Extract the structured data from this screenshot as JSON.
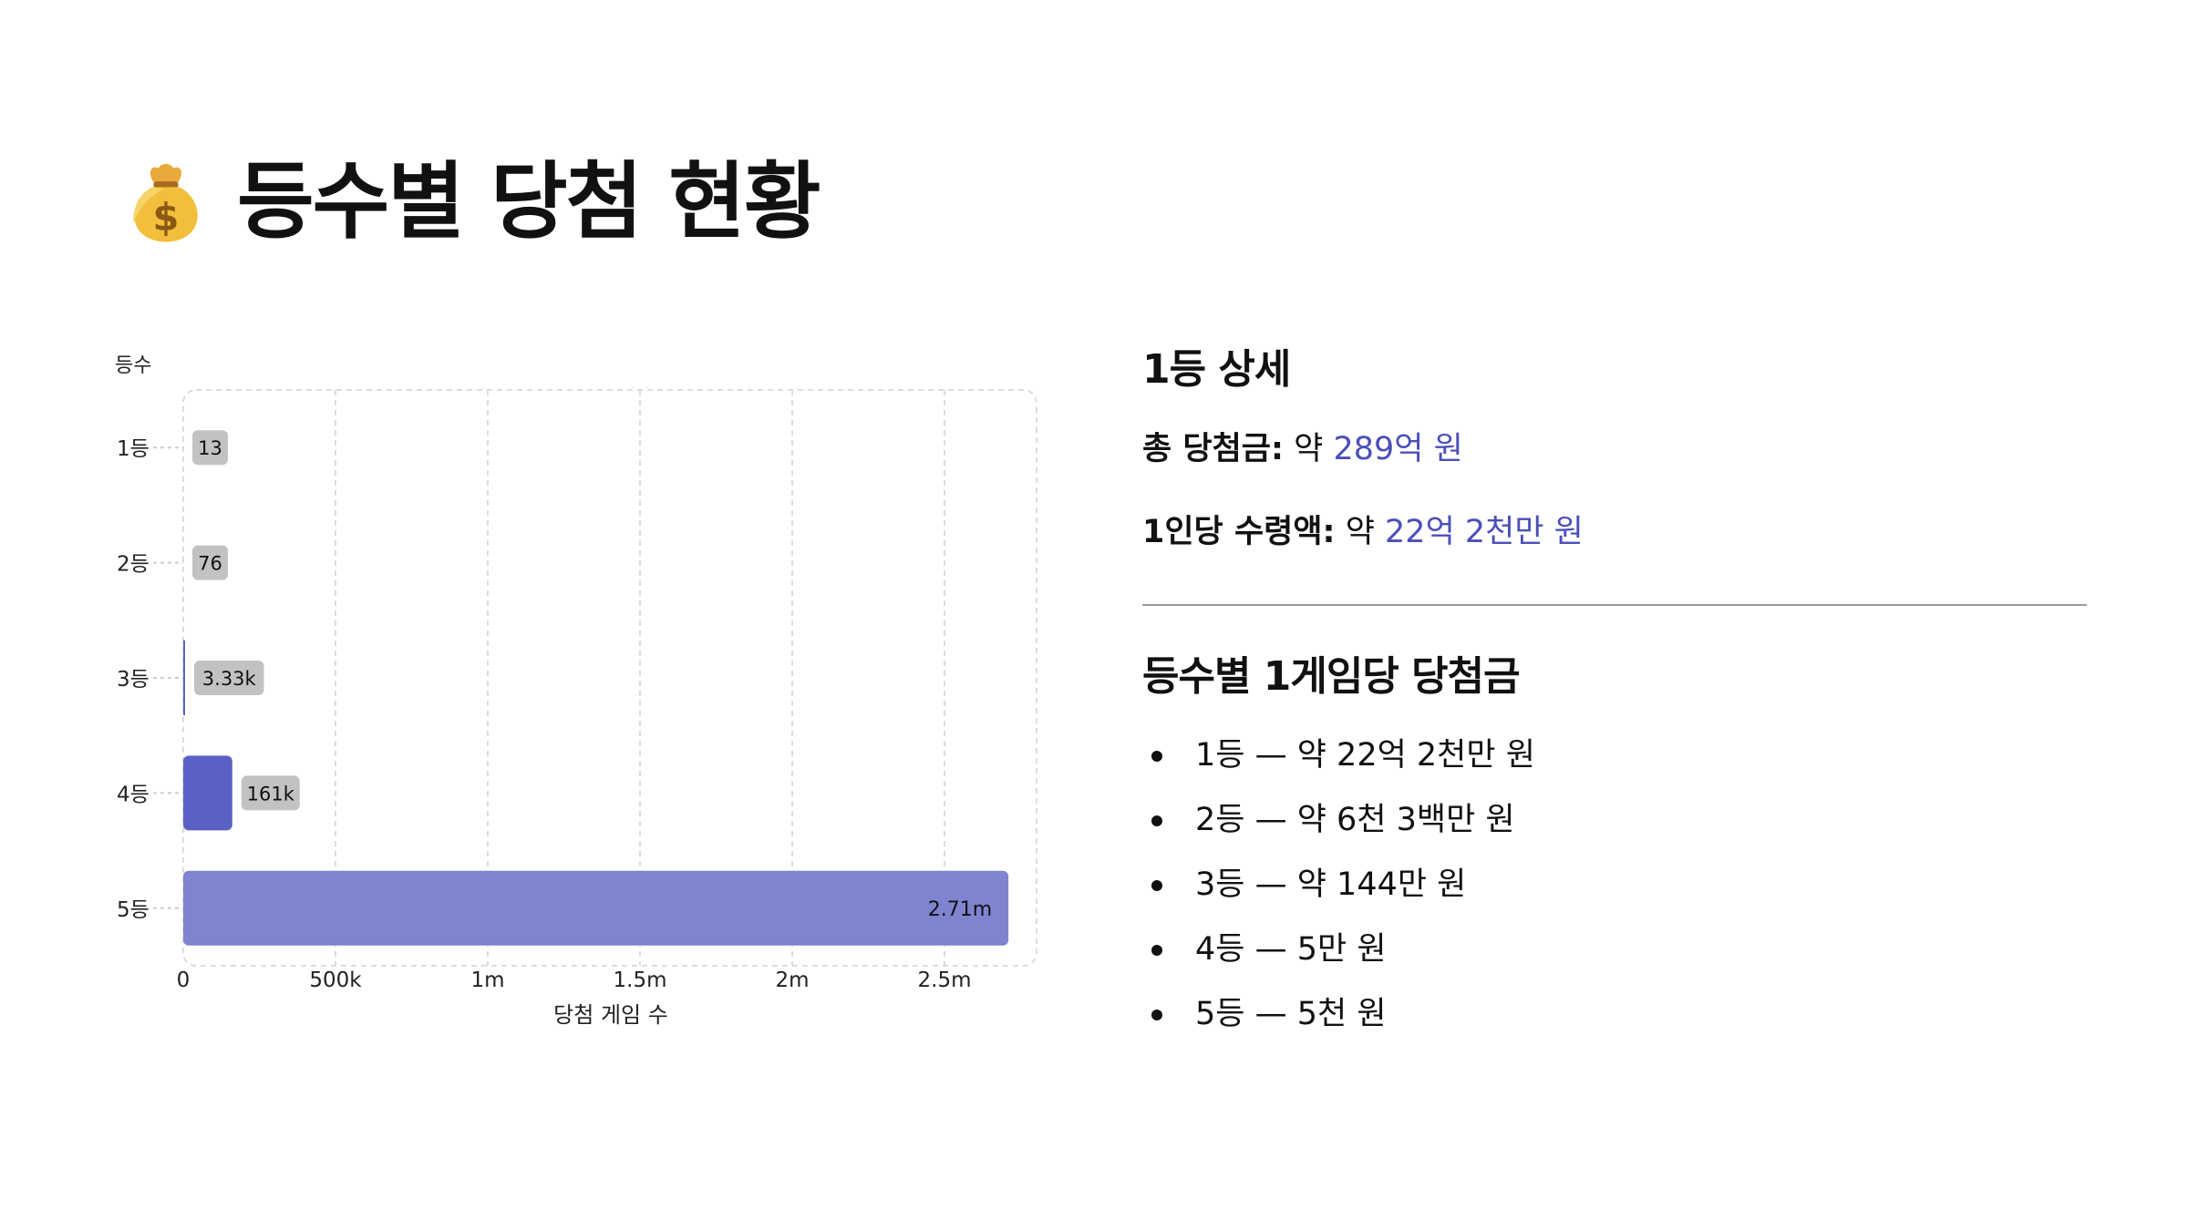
{
  "title": {
    "icon": "money-bag-icon",
    "text": "등수별 당첨 현황"
  },
  "chart_data": {
    "type": "bar",
    "orientation": "horizontal",
    "categories": [
      "1등",
      "2등",
      "3등",
      "4등",
      "5등"
    ],
    "values": [
      13,
      76,
      3330,
      161000,
      2710000
    ],
    "data_labels": [
      "13",
      "76",
      "3.33k",
      "161k",
      "2.71m"
    ],
    "ylabel": "등수",
    "xlabel": "당첨 게임 수",
    "xlim": [
      0,
      2800000
    ],
    "xticks": [
      0,
      500000,
      1000000,
      1500000,
      2000000,
      2500000
    ],
    "xtick_labels": [
      "0",
      "500k",
      "1m",
      "1.5m",
      "2m",
      "2.5m"
    ],
    "grid": true,
    "bar_colors": [
      "#5b60c7",
      "#5b60c7",
      "#5b60c7",
      "#5b60c7",
      "#7f84d0"
    ]
  },
  "detail": {
    "heading": "1등 상세",
    "total_label": "총 당첨금:",
    "total_prefix": "약",
    "total_value": "289억 원",
    "per_label": "1인당 수령액:",
    "per_prefix": "약",
    "per_value": "22억 2천만 원"
  },
  "prizes": {
    "heading": "등수별 1게임당 당첨금",
    "items": [
      "1등 — 약 22억 2천만 원",
      "2등 — 약 6천 3백만 원",
      "3등 — 약 144만 원",
      "4등 — 5만 원",
      "5등 — 5천 원"
    ]
  },
  "colors": {
    "accent": "#4c4fb8",
    "bar": "#5b60c7",
    "bar_light": "#7f84d0"
  }
}
